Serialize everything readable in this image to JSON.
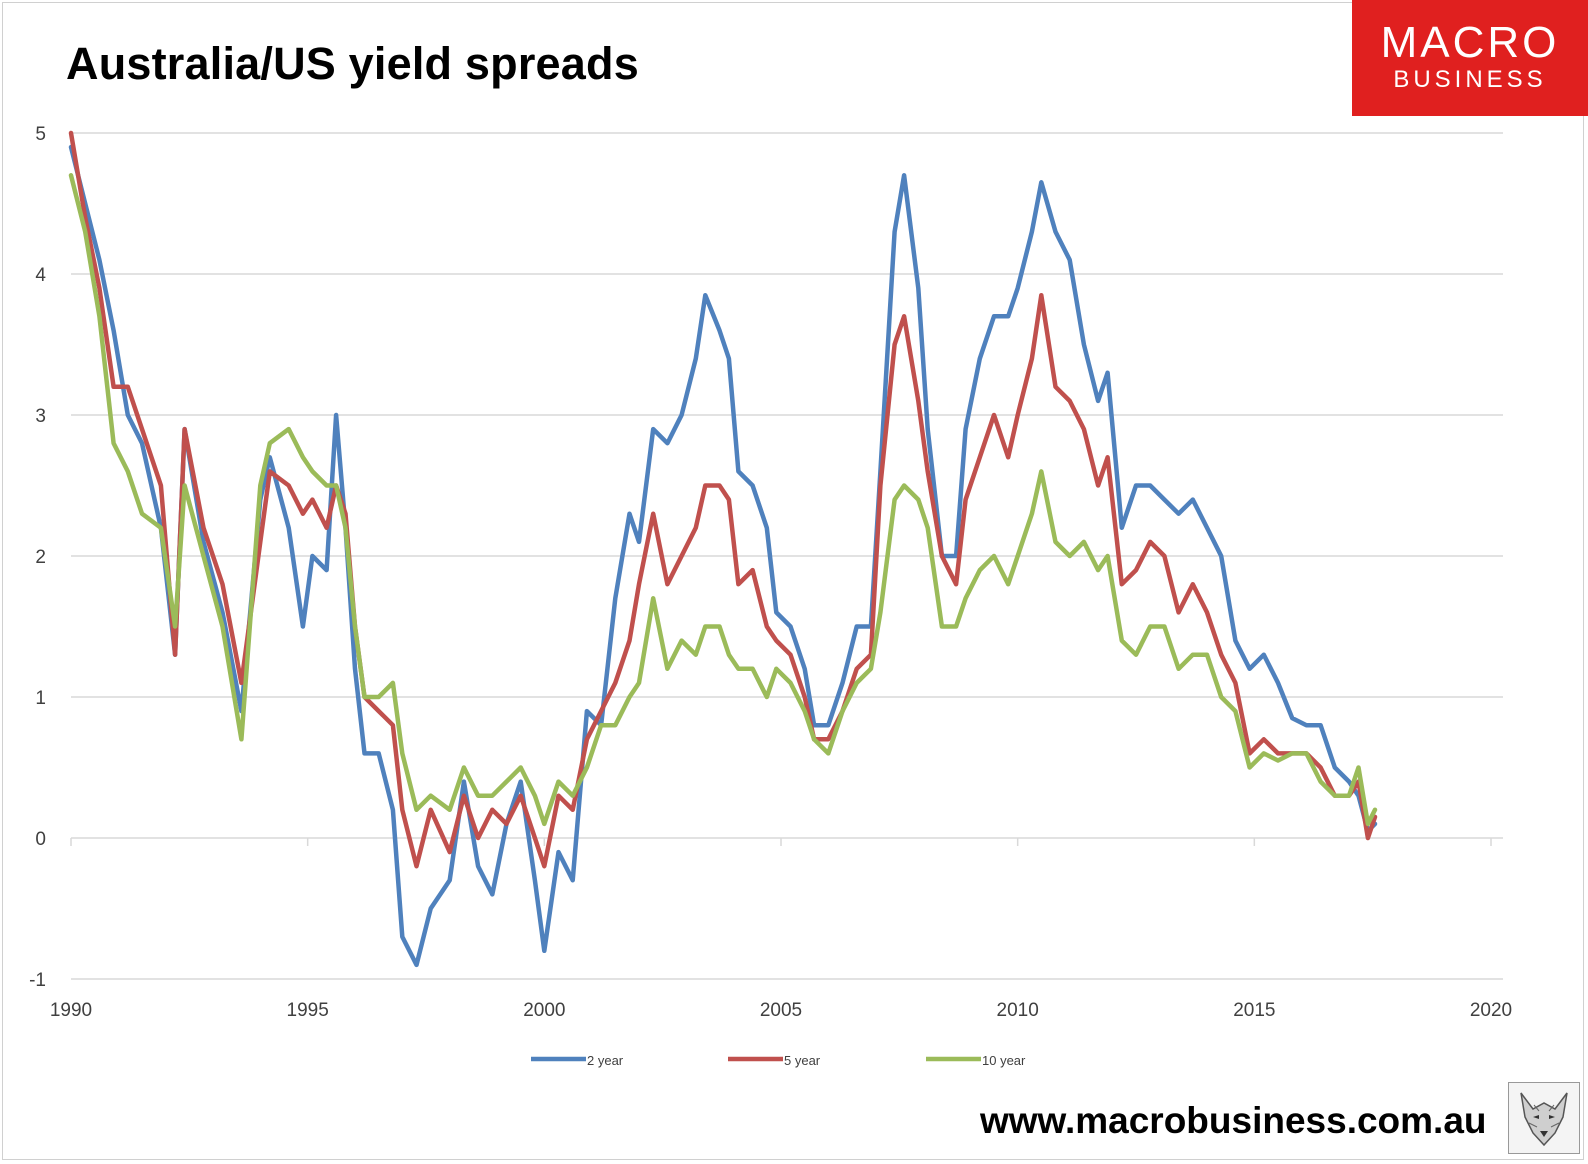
{
  "title": "Australia/US yield spreads",
  "logo": {
    "line1": "MACRO",
    "line2": "BUSINESS",
    "color": "#e0201f"
  },
  "footer": {
    "url": "www.macrobusiness.com.au"
  },
  "chart_data": {
    "type": "line",
    "title": "Australia/US yield spreads",
    "xlabel": "",
    "ylabel": "",
    "xlim": [
      1990,
      2020
    ],
    "ylim": [
      -1,
      5
    ],
    "x_ticks": [
      1990,
      1995,
      2000,
      2005,
      2010,
      2015,
      2020
    ],
    "y_ticks": [
      -1,
      0,
      1,
      2,
      3,
      4,
      5
    ],
    "grid": "horizontal",
    "legend_position": "bottom",
    "series": [
      {
        "name": "2 year",
        "color": "#4f81bd",
        "points": [
          [
            1990,
            4.9
          ],
          [
            1990.3,
            4.5
          ],
          [
            1990.6,
            4.1
          ],
          [
            1990.9,
            3.6
          ],
          [
            1991.2,
            3.0
          ],
          [
            1991.5,
            2.8
          ],
          [
            1991.9,
            2.2
          ],
          [
            1992.2,
            1.3
          ],
          [
            1992.4,
            2.9
          ],
          [
            1992.8,
            2.1
          ],
          [
            1993.2,
            1.6
          ],
          [
            1993.6,
            0.9
          ],
          [
            1994.0,
            2.4
          ],
          [
            1994.2,
            2.7
          ],
          [
            1994.6,
            2.2
          ],
          [
            1994.9,
            1.5
          ],
          [
            1995.1,
            2.0
          ],
          [
            1995.4,
            1.9
          ],
          [
            1995.6,
            3.0
          ],
          [
            1995.8,
            2.2
          ],
          [
            1996.0,
            1.2
          ],
          [
            1996.2,
            0.6
          ],
          [
            1996.5,
            0.6
          ],
          [
            1996.8,
            0.2
          ],
          [
            1997.0,
            -0.7
          ],
          [
            1997.3,
            -0.9
          ],
          [
            1997.6,
            -0.5
          ],
          [
            1998.0,
            -0.3
          ],
          [
            1998.3,
            0.4
          ],
          [
            1998.6,
            -0.2
          ],
          [
            1998.9,
            -0.4
          ],
          [
            1999.2,
            0.1
          ],
          [
            1999.5,
            0.4
          ],
          [
            1999.8,
            -0.3
          ],
          [
            2000.0,
            -0.8
          ],
          [
            2000.3,
            -0.1
          ],
          [
            2000.6,
            -0.3
          ],
          [
            2000.9,
            0.9
          ],
          [
            2001.2,
            0.8
          ],
          [
            2001.5,
            1.7
          ],
          [
            2001.8,
            2.3
          ],
          [
            2002.0,
            2.1
          ],
          [
            2002.3,
            2.9
          ],
          [
            2002.6,
            2.8
          ],
          [
            2002.9,
            3.0
          ],
          [
            2003.2,
            3.4
          ],
          [
            2003.4,
            3.85
          ],
          [
            2003.7,
            3.6
          ],
          [
            2003.9,
            3.4
          ],
          [
            2004.1,
            2.6
          ],
          [
            2004.4,
            2.5
          ],
          [
            2004.7,
            2.2
          ],
          [
            2004.9,
            1.6
          ],
          [
            2005.2,
            1.5
          ],
          [
            2005.5,
            1.2
          ],
          [
            2005.7,
            0.8
          ],
          [
            2006.0,
            0.8
          ],
          [
            2006.3,
            1.1
          ],
          [
            2006.6,
            1.5
          ],
          [
            2006.9,
            1.5
          ],
          [
            2007.1,
            2.6
          ],
          [
            2007.4,
            4.3
          ],
          [
            2007.6,
            4.7
          ],
          [
            2007.9,
            3.9
          ],
          [
            2008.1,
            2.9
          ],
          [
            2008.4,
            2.0
          ],
          [
            2008.7,
            2.0
          ],
          [
            2008.9,
            2.9
          ],
          [
            2009.2,
            3.4
          ],
          [
            2009.5,
            3.7
          ],
          [
            2009.8,
            3.7
          ],
          [
            2010.0,
            3.9
          ],
          [
            2010.3,
            4.3
          ],
          [
            2010.5,
            4.65
          ],
          [
            2010.8,
            4.3
          ],
          [
            2011.1,
            4.1
          ],
          [
            2011.4,
            3.5
          ],
          [
            2011.7,
            3.1
          ],
          [
            2011.9,
            3.3
          ],
          [
            2012.2,
            2.2
          ],
          [
            2012.5,
            2.5
          ],
          [
            2012.8,
            2.5
          ],
          [
            2013.1,
            2.4
          ],
          [
            2013.4,
            2.3
          ],
          [
            2013.7,
            2.4
          ],
          [
            2014.0,
            2.2
          ],
          [
            2014.3,
            2.0
          ],
          [
            2014.6,
            1.4
          ],
          [
            2014.9,
            1.2
          ],
          [
            2015.2,
            1.3
          ],
          [
            2015.5,
            1.1
          ],
          [
            2015.8,
            0.85
          ],
          [
            2016.1,
            0.8
          ],
          [
            2016.4,
            0.8
          ],
          [
            2016.7,
            0.5
          ],
          [
            2017.0,
            0.4
          ],
          [
            2017.2,
            0.3
          ],
          [
            2017.4,
            0.05
          ],
          [
            2017.55,
            0.1
          ]
        ]
      },
      {
        "name": "5 year",
        "color": "#c0504d",
        "points": [
          [
            1990,
            5.0
          ],
          [
            1990.3,
            4.4
          ],
          [
            1990.6,
            3.9
          ],
          [
            1990.9,
            3.2
          ],
          [
            1991.2,
            3.2
          ],
          [
            1991.5,
            2.9
          ],
          [
            1991.9,
            2.5
          ],
          [
            1992.2,
            1.3
          ],
          [
            1992.4,
            2.9
          ],
          [
            1992.8,
            2.2
          ],
          [
            1993.2,
            1.8
          ],
          [
            1993.6,
            1.1
          ],
          [
            1994.0,
            2.1
          ],
          [
            1994.2,
            2.6
          ],
          [
            1994.6,
            2.5
          ],
          [
            1994.9,
            2.3
          ],
          [
            1995.1,
            2.4
          ],
          [
            1995.4,
            2.2
          ],
          [
            1995.6,
            2.5
          ],
          [
            1995.8,
            2.3
          ],
          [
            1996.0,
            1.5
          ],
          [
            1996.2,
            1.0
          ],
          [
            1996.5,
            0.9
          ],
          [
            1996.8,
            0.8
          ],
          [
            1997.0,
            0.2
          ],
          [
            1997.3,
            -0.2
          ],
          [
            1997.6,
            0.2
          ],
          [
            1998.0,
            -0.1
          ],
          [
            1998.3,
            0.3
          ],
          [
            1998.6,
            0.0
          ],
          [
            1998.9,
            0.2
          ],
          [
            1999.2,
            0.1
          ],
          [
            1999.5,
            0.3
          ],
          [
            1999.8,
            0.0
          ],
          [
            2000.0,
            -0.2
          ],
          [
            2000.3,
            0.3
          ],
          [
            2000.6,
            0.2
          ],
          [
            2000.9,
            0.7
          ],
          [
            2001.2,
            0.9
          ],
          [
            2001.5,
            1.1
          ],
          [
            2001.8,
            1.4
          ],
          [
            2002.0,
            1.8
          ],
          [
            2002.3,
            2.3
          ],
          [
            2002.6,
            1.8
          ],
          [
            2002.9,
            2.0
          ],
          [
            2003.2,
            2.2
          ],
          [
            2003.4,
            2.5
          ],
          [
            2003.7,
            2.5
          ],
          [
            2003.9,
            2.4
          ],
          [
            2004.1,
            1.8
          ],
          [
            2004.4,
            1.9
          ],
          [
            2004.7,
            1.5
          ],
          [
            2004.9,
            1.4
          ],
          [
            2005.2,
            1.3
          ],
          [
            2005.5,
            1.0
          ],
          [
            2005.7,
            0.7
          ],
          [
            2006.0,
            0.7
          ],
          [
            2006.3,
            0.9
          ],
          [
            2006.6,
            1.2
          ],
          [
            2006.9,
            1.3
          ],
          [
            2007.1,
            2.5
          ],
          [
            2007.4,
            3.5
          ],
          [
            2007.6,
            3.7
          ],
          [
            2007.9,
            3.1
          ],
          [
            2008.1,
            2.6
          ],
          [
            2008.4,
            2.0
          ],
          [
            2008.7,
            1.8
          ],
          [
            2008.9,
            2.4
          ],
          [
            2009.2,
            2.7
          ],
          [
            2009.5,
            3.0
          ],
          [
            2009.8,
            2.7
          ],
          [
            2010.0,
            3.0
          ],
          [
            2010.3,
            3.4
          ],
          [
            2010.5,
            3.85
          ],
          [
            2010.8,
            3.2
          ],
          [
            2011.1,
            3.1
          ],
          [
            2011.4,
            2.9
          ],
          [
            2011.7,
            2.5
          ],
          [
            2011.9,
            2.7
          ],
          [
            2012.2,
            1.8
          ],
          [
            2012.5,
            1.9
          ],
          [
            2012.8,
            2.1
          ],
          [
            2013.1,
            2.0
          ],
          [
            2013.4,
            1.6
          ],
          [
            2013.7,
            1.8
          ],
          [
            2014.0,
            1.6
          ],
          [
            2014.3,
            1.3
          ],
          [
            2014.6,
            1.1
          ],
          [
            2014.9,
            0.6
          ],
          [
            2015.2,
            0.7
          ],
          [
            2015.5,
            0.6
          ],
          [
            2015.8,
            0.6
          ],
          [
            2016.1,
            0.6
          ],
          [
            2016.4,
            0.5
          ],
          [
            2016.7,
            0.3
          ],
          [
            2017.0,
            0.3
          ],
          [
            2017.2,
            0.4
          ],
          [
            2017.4,
            0.0
          ],
          [
            2017.55,
            0.15
          ]
        ]
      },
      {
        "name": "10 year",
        "color": "#9bbb59",
        "points": [
          [
            1990,
            4.7
          ],
          [
            1990.3,
            4.3
          ],
          [
            1990.6,
            3.7
          ],
          [
            1990.9,
            2.8
          ],
          [
            1991.2,
            2.6
          ],
          [
            1991.5,
            2.3
          ],
          [
            1991.9,
            2.2
          ],
          [
            1992.2,
            1.5
          ],
          [
            1992.4,
            2.5
          ],
          [
            1992.8,
            2.0
          ],
          [
            1993.2,
            1.5
          ],
          [
            1993.6,
            0.7
          ],
          [
            1994.0,
            2.5
          ],
          [
            1994.2,
            2.8
          ],
          [
            1994.6,
            2.9
          ],
          [
            1994.9,
            2.7
          ],
          [
            1995.1,
            2.6
          ],
          [
            1995.4,
            2.5
          ],
          [
            1995.6,
            2.5
          ],
          [
            1995.8,
            2.2
          ],
          [
            1996.0,
            1.5
          ],
          [
            1996.2,
            1.0
          ],
          [
            1996.5,
            1.0
          ],
          [
            1996.8,
            1.1
          ],
          [
            1997.0,
            0.6
          ],
          [
            1997.3,
            0.2
          ],
          [
            1997.6,
            0.3
          ],
          [
            1998.0,
            0.2
          ],
          [
            1998.3,
            0.5
          ],
          [
            1998.6,
            0.3
          ],
          [
            1998.9,
            0.3
          ],
          [
            1999.2,
            0.4
          ],
          [
            1999.5,
            0.5
          ],
          [
            1999.8,
            0.3
          ],
          [
            2000.0,
            0.1
          ],
          [
            2000.3,
            0.4
          ],
          [
            2000.6,
            0.3
          ],
          [
            2000.9,
            0.5
          ],
          [
            2001.2,
            0.8
          ],
          [
            2001.5,
            0.8
          ],
          [
            2001.8,
            1.0
          ],
          [
            2002.0,
            1.1
          ],
          [
            2002.3,
            1.7
          ],
          [
            2002.6,
            1.2
          ],
          [
            2002.9,
            1.4
          ],
          [
            2003.2,
            1.3
          ],
          [
            2003.4,
            1.5
          ],
          [
            2003.7,
            1.5
          ],
          [
            2003.9,
            1.3
          ],
          [
            2004.1,
            1.2
          ],
          [
            2004.4,
            1.2
          ],
          [
            2004.7,
            1.0
          ],
          [
            2004.9,
            1.2
          ],
          [
            2005.2,
            1.1
          ],
          [
            2005.5,
            0.9
          ],
          [
            2005.7,
            0.7
          ],
          [
            2006.0,
            0.6
          ],
          [
            2006.3,
            0.9
          ],
          [
            2006.6,
            1.1
          ],
          [
            2006.9,
            1.2
          ],
          [
            2007.1,
            1.6
          ],
          [
            2007.4,
            2.4
          ],
          [
            2007.6,
            2.5
          ],
          [
            2007.9,
            2.4
          ],
          [
            2008.1,
            2.2
          ],
          [
            2008.4,
            1.5
          ],
          [
            2008.7,
            1.5
          ],
          [
            2008.9,
            1.7
          ],
          [
            2009.2,
            1.9
          ],
          [
            2009.5,
            2.0
          ],
          [
            2009.8,
            1.8
          ],
          [
            2010.0,
            2.0
          ],
          [
            2010.3,
            2.3
          ],
          [
            2010.5,
            2.6
          ],
          [
            2010.8,
            2.1
          ],
          [
            2011.1,
            2.0
          ],
          [
            2011.4,
            2.1
          ],
          [
            2011.7,
            1.9
          ],
          [
            2011.9,
            2.0
          ],
          [
            2012.2,
            1.4
          ],
          [
            2012.5,
            1.3
          ],
          [
            2012.8,
            1.5
          ],
          [
            2013.1,
            1.5
          ],
          [
            2013.4,
            1.2
          ],
          [
            2013.7,
            1.3
          ],
          [
            2014.0,
            1.3
          ],
          [
            2014.3,
            1.0
          ],
          [
            2014.6,
            0.9
          ],
          [
            2014.9,
            0.5
          ],
          [
            2015.2,
            0.6
          ],
          [
            2015.5,
            0.55
          ],
          [
            2015.8,
            0.6
          ],
          [
            2016.1,
            0.6
          ],
          [
            2016.4,
            0.4
          ],
          [
            2016.7,
            0.3
          ],
          [
            2017.0,
            0.3
          ],
          [
            2017.2,
            0.5
          ],
          [
            2017.4,
            0.1
          ],
          [
            2017.55,
            0.2
          ]
        ]
      }
    ]
  }
}
